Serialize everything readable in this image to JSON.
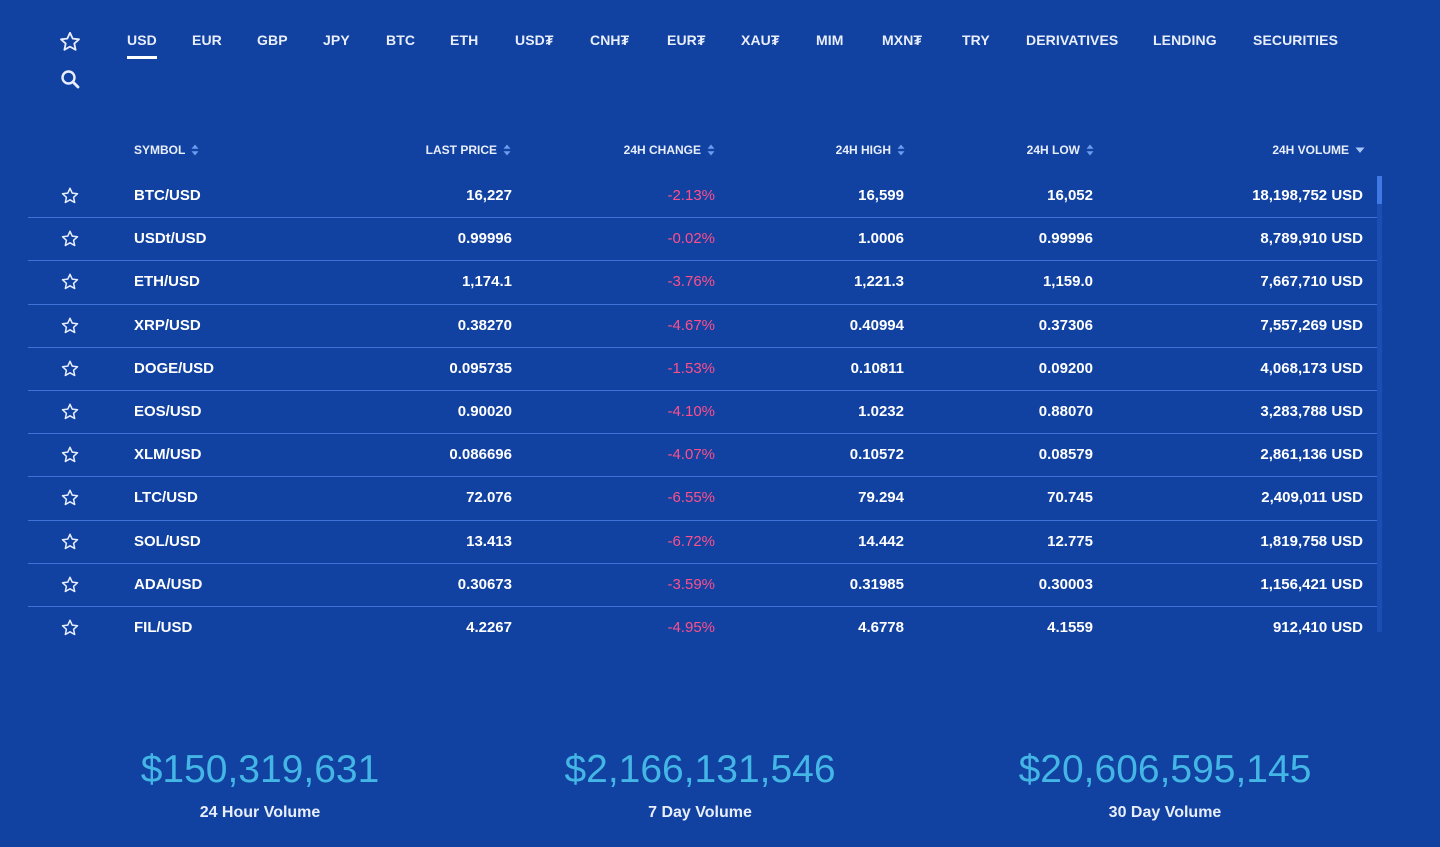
{
  "tabs": [
    "USD",
    "EUR",
    "GBP",
    "JPY",
    "BTC",
    "ETH",
    "USD₮",
    "CNH₮",
    "EUR₮",
    "XAU₮",
    "MIM",
    "MXN₮",
    "TRY",
    "DERIVATIVES",
    "LENDING",
    "SECURITIES"
  ],
  "active_tab": "USD",
  "columns": {
    "symbol": "SYMBOL",
    "last_price": "LAST PRICE",
    "change": "24H CHANGE",
    "high": "24H HIGH",
    "low": "24H LOW",
    "volume": "24H VOLUME"
  },
  "rows": [
    {
      "symbol": "BTC/USD",
      "last": "16,227",
      "change": "-2.13%",
      "high": "16,599",
      "low": "16,052",
      "volume": "18,198,752 USD"
    },
    {
      "symbol": "USDt/USD",
      "last": "0.99996",
      "change": "-0.02%",
      "high": "1.0006",
      "low": "0.99996",
      "volume": "8,789,910 USD"
    },
    {
      "symbol": "ETH/USD",
      "last": "1,174.1",
      "change": "-3.76%",
      "high": "1,221.3",
      "low": "1,159.0",
      "volume": "7,667,710 USD"
    },
    {
      "symbol": "XRP/USD",
      "last": "0.38270",
      "change": "-4.67%",
      "high": "0.40994",
      "low": "0.37306",
      "volume": "7,557,269 USD"
    },
    {
      "symbol": "DOGE/USD",
      "last": "0.095735",
      "change": "-1.53%",
      "high": "0.10811",
      "low": "0.09200",
      "volume": "4,068,173 USD"
    },
    {
      "symbol": "EOS/USD",
      "last": "0.90020",
      "change": "-4.10%",
      "high": "1.0232",
      "low": "0.88070",
      "volume": "3,283,788 USD"
    },
    {
      "symbol": "XLM/USD",
      "last": "0.086696",
      "change": "-4.07%",
      "high": "0.10572",
      "low": "0.08579",
      "volume": "2,861,136 USD"
    },
    {
      "symbol": "LTC/USD",
      "last": "72.076",
      "change": "-6.55%",
      "high": "79.294",
      "low": "70.745",
      "volume": "2,409,011 USD"
    },
    {
      "symbol": "SOL/USD",
      "last": "13.413",
      "change": "-6.72%",
      "high": "14.442",
      "low": "12.775",
      "volume": "1,819,758 USD"
    },
    {
      "symbol": "ADA/USD",
      "last": "0.30673",
      "change": "-3.59%",
      "high": "0.31985",
      "low": "0.30003",
      "volume": "1,156,421 USD"
    },
    {
      "symbol": "FIL/USD",
      "last": "4.2267",
      "change": "-4.95%",
      "high": "4.6778",
      "low": "4.1559",
      "volume": "912,410 USD"
    }
  ],
  "stats": [
    {
      "value": "$150,319,631",
      "label": "24 Hour Volume"
    },
    {
      "value": "$2,166,131,546",
      "label": "7 Day Volume"
    },
    {
      "value": "$20,606,595,145",
      "label": "30 Day Volume"
    }
  ],
  "colors": {
    "background": "#1142a1",
    "negative_change": "#ff4f8b",
    "stat_value": "#44b6e6",
    "divider": "#3f72d6"
  },
  "icons": {
    "favorites": "star-outline-icon",
    "search": "magnifier-icon",
    "row_favorite": "star-outline-icon",
    "sort": "sort-arrows-icon",
    "sort_active": "sort-desc-icon"
  }
}
